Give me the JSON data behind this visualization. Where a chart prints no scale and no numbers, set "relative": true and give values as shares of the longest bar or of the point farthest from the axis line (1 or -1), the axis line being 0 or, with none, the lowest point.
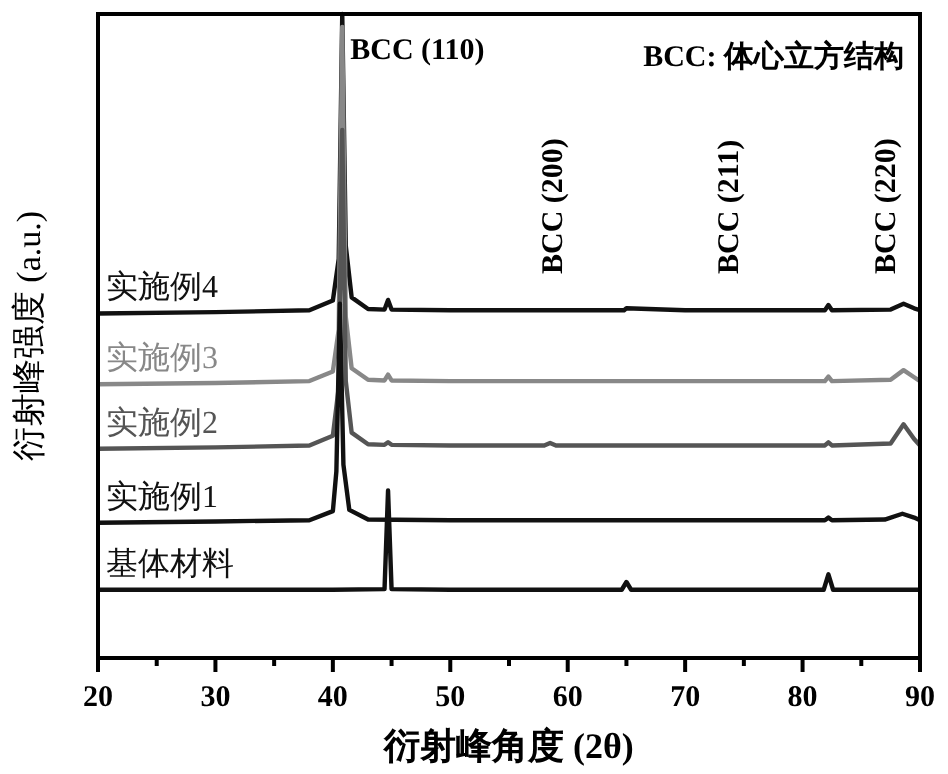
{
  "chart_data": {
    "type": "line",
    "xlabel": "衍射峰角度 (2θ)",
    "ylabel": "衍射峰强度 (a.u.)",
    "relative": true,
    "legend": false,
    "grid": false,
    "marker": "none",
    "line_style": "solid",
    "xlim": [
      20,
      90
    ],
    "xticks": [
      20,
      {
        "value": 25,
        "label": null
      },
      30,
      {
        "value": 35,
        "label": null
      },
      40,
      {
        "value": 45,
        "label": null
      },
      50,
      {
        "value": 55,
        "label": null
      },
      60,
      {
        "value": 65,
        "label": null
      },
      70,
      {
        "value": 75,
        "label": null
      },
      80,
      {
        "value": 85,
        "label": null
      },
      90
    ],
    "series": [
      {
        "name": "实施例4",
        "color": "#111111",
        "x": [
          20,
          30,
          38,
          40,
          40.5,
          40.8,
          41.1,
          41.6,
          43,
          44.4,
          44.7,
          45,
          50,
          60,
          64.8,
          65,
          70,
          81.9,
          82.2,
          82.5,
          87.5,
          88.6,
          89.5,
          90
        ],
        "values": [
          0.535,
          0.537,
          0.54,
          0.555,
          0.62,
          1.0,
          0.64,
          0.56,
          0.542,
          0.541,
          0.556,
          0.541,
          0.54,
          0.54,
          0.54,
          0.543,
          0.54,
          0.54,
          0.548,
          0.54,
          0.541,
          0.55,
          0.543,
          0.54
        ]
      },
      {
        "name": "实施例3",
        "color": "#888888",
        "x": [
          20,
          30,
          38,
          40,
          40.5,
          40.8,
          41.1,
          41.6,
          43,
          44.4,
          44.7,
          45,
          50,
          60,
          70,
          81.9,
          82.2,
          82.5,
          87.5,
          88.6,
          89.5,
          90
        ],
        "values": [
          0.425,
          0.427,
          0.43,
          0.445,
          0.51,
          0.98,
          0.53,
          0.45,
          0.432,
          0.431,
          0.44,
          0.431,
          0.43,
          0.43,
          0.43,
          0.43,
          0.437,
          0.43,
          0.432,
          0.447,
          0.436,
          0.43
        ]
      },
      {
        "name": "实施例2",
        "color": "#555555",
        "x": [
          20,
          30,
          38,
          40,
          40.5,
          40.8,
          41.1,
          41.6,
          43,
          44.4,
          44.7,
          45,
          50,
          58,
          58.5,
          59,
          70,
          81.9,
          82.2,
          82.5,
          87.5,
          88.6,
          89.5,
          90
        ],
        "values": [
          0.325,
          0.327,
          0.33,
          0.345,
          0.42,
          0.82,
          0.43,
          0.35,
          0.332,
          0.331,
          0.335,
          0.331,
          0.33,
          0.33,
          0.334,
          0.33,
          0.33,
          0.33,
          0.335,
          0.33,
          0.333,
          0.363,
          0.34,
          0.33
        ]
      },
      {
        "name": "实施例1",
        "color": "#111111",
        "x": [
          20,
          30,
          38,
          40,
          40.3,
          40.6,
          40.9,
          41.4,
          43,
          50,
          60,
          70,
          81.9,
          82.2,
          82.5,
          87,
          88.5,
          89.5,
          90
        ],
        "values": [
          0.21,
          0.212,
          0.214,
          0.228,
          0.29,
          0.55,
          0.3,
          0.23,
          0.215,
          0.214,
          0.214,
          0.214,
          0.214,
          0.218,
          0.214,
          0.215,
          0.224,
          0.218,
          0.214
        ]
      },
      {
        "name": "基体材料",
        "color": "#111111",
        "x": [
          20,
          30,
          40,
          44.4,
          44.7,
          45,
          50,
          60,
          64.6,
          65,
          65.4,
          70,
          81.8,
          82.2,
          82.6,
          90
        ],
        "values": [
          0.106,
          0.106,
          0.106,
          0.107,
          0.26,
          0.107,
          0.106,
          0.106,
          0.106,
          0.118,
          0.106,
          0.106,
          0.106,
          0.13,
          0.106,
          0.106
        ]
      }
    ],
    "annotations": [
      {
        "text": "BCC (110)",
        "x": 40.8,
        "y": 0.93
      },
      "BCC (200)",
      "BCC (211)",
      "BCC (220)",
      "BCC: 体心立方结构"
    ]
  }
}
